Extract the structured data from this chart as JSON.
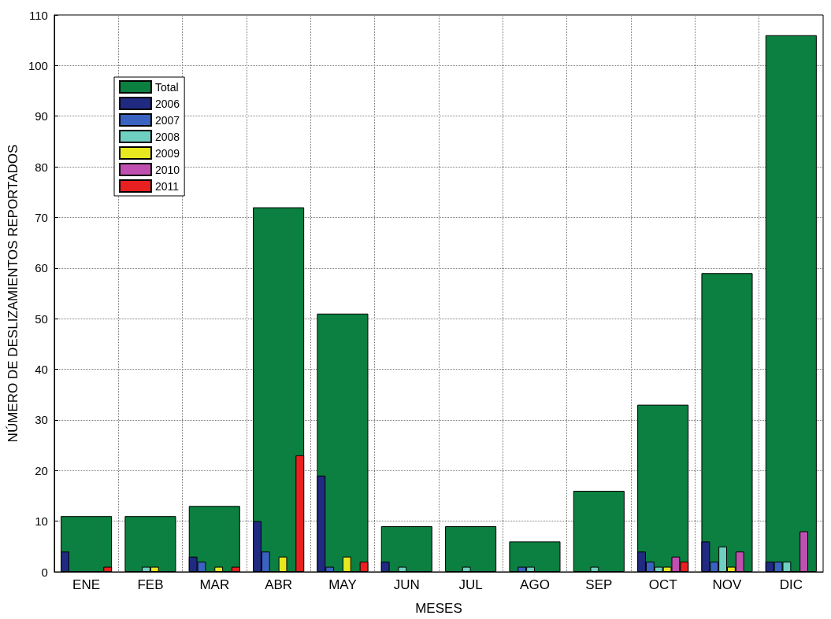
{
  "chart_data": {
    "type": "bar",
    "xlabel": "MESES",
    "ylabel": "NÚMERO DE DESLIZAMIENTOS REPORTADOS",
    "categories": [
      "ENE",
      "FEB",
      "MAR",
      "ABR",
      "MAY",
      "JUN",
      "JUL",
      "AGO",
      "SEP",
      "OCT",
      "NOV",
      "DIC"
    ],
    "series": [
      {
        "name": "Total",
        "color": "#0b8040",
        "values": [
          11,
          11,
          13,
          72,
          51,
          9,
          9,
          6,
          16,
          33,
          59,
          106
        ]
      },
      {
        "name": "2006",
        "color": "#1f2a80",
        "values": [
          4,
          null,
          3,
          10,
          19,
          2,
          null,
          null,
          null,
          4,
          6,
          2
        ]
      },
      {
        "name": "2007",
        "color": "#3a62c0",
        "values": [
          null,
          null,
          2,
          4,
          1,
          null,
          null,
          1,
          null,
          2,
          2,
          2
        ]
      },
      {
        "name": "2008",
        "color": "#6fcfc0",
        "values": [
          null,
          1,
          null,
          null,
          null,
          1,
          1,
          1,
          1,
          1,
          5,
          2
        ]
      },
      {
        "name": "2009",
        "color": "#e8e820",
        "values": [
          null,
          1,
          1,
          3,
          3,
          null,
          null,
          null,
          null,
          1,
          1,
          null
        ]
      },
      {
        "name": "2010",
        "color": "#c050b0",
        "values": [
          null,
          null,
          null,
          null,
          null,
          null,
          null,
          null,
          null,
          3,
          4,
          8
        ]
      },
      {
        "name": "2011",
        "color": "#e82020",
        "values": [
          1,
          null,
          1,
          23,
          2,
          null,
          null,
          null,
          null,
          2,
          null,
          null
        ]
      }
    ],
    "ylim": [
      0,
      110
    ],
    "yticks": [
      0,
      10,
      20,
      30,
      40,
      50,
      60,
      70,
      80,
      90,
      100,
      110
    ],
    "grid": true,
    "legend": "top left"
  }
}
